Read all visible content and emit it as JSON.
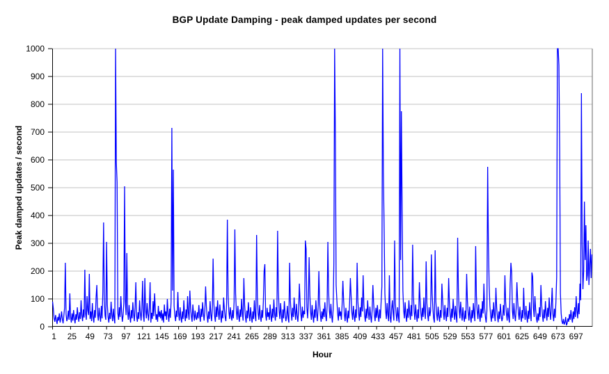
{
  "chart_data": {
    "type": "line",
    "title": "BGP Update Damping - peak damped updates per second",
    "xlabel": "Hour",
    "ylabel": "Peak damped updates / second",
    "ylim": [
      0,
      1000
    ],
    "y_tick_step": 100,
    "y_ticks": [
      0,
      100,
      200,
      300,
      400,
      500,
      600,
      700,
      800,
      900,
      1000
    ],
    "x_tick_labels": [
      1,
      25,
      49,
      73,
      97,
      121,
      145,
      169,
      193,
      217,
      241,
      265,
      289,
      313,
      337,
      361,
      385,
      409,
      433,
      457,
      481,
      505,
      529,
      553,
      577,
      601,
      625,
      649,
      673,
      697
    ],
    "x_start_hour": 1,
    "hours_total": 720,
    "grid": "horizontal-only",
    "legend_position": "none",
    "series_name": "peak damped updates per second",
    "series_color": "#0000FF",
    "gridline_color": "#C0C0C0",
    "plot_border_color": "#808080",
    "axis_color": "#000000",
    "background_color": "#FFFFFF",
    "note": "values above 1000 are clipped at the axis maximum",
    "values": [
      90,
      65,
      30,
      18,
      42,
      25,
      10,
      35,
      22,
      48,
      15,
      30,
      55,
      28,
      12,
      40,
      68,
      230,
      45,
      20,
      32,
      58,
      25,
      120,
      35,
      15,
      48,
      22,
      60,
      30,
      12,
      45,
      25,
      70,
      38,
      18,
      52,
      28,
      95,
      40,
      20,
      62,
      33,
      205,
      48,
      25,
      110,
      58,
      42,
      190,
      28,
      55,
      20,
      85,
      35,
      15,
      60,
      32,
      105,
      150,
      45,
      22,
      68,
      38,
      18,
      75,
      30,
      125,
      375,
      95,
      40,
      25,
      305,
      80,
      35,
      15,
      50,
      28,
      90,
      42,
      20,
      65,
      30,
      12,
      1000,
      590,
      520,
      48,
      25,
      70,
      35,
      110,
      55,
      18,
      40,
      85,
      505,
      95,
      42,
      265,
      55,
      25,
      78,
      35,
      15,
      60,
      30,
      88,
      45,
      20,
      72,
      160,
      38,
      18,
      52,
      28,
      95,
      48,
      22,
      65,
      165,
      40,
      18,
      175,
      58,
      30,
      85,
      45,
      22,
      68,
      160,
      15,
      50,
      28,
      92,
      38,
      120,
      62,
      25,
      45,
      18,
      75,
      35,
      55,
      30,
      60,
      22,
      48,
      15,
      80,
      38,
      55,
      25,
      100,
      45,
      18,
      65,
      32,
      90,
      715,
      130,
      565,
      75,
      40,
      20,
      58,
      35,
      125,
      48,
      22,
      70,
      35,
      15,
      55,
      28,
      95,
      42,
      20,
      62,
      30,
      110,
      50,
      25,
      130,
      68,
      38,
      18,
      80,
      45,
      22,
      58,
      32,
      25,
      52,
      30,
      78,
      40,
      18,
      65,
      35,
      88,
      48,
      22,
      60,
      145,
      75,
      38,
      15,
      55,
      28,
      92,
      45,
      20,
      68,
      245,
      85,
      40,
      18,
      72,
      35,
      95,
      50,
      25,
      80,
      42,
      15,
      58,
      30,
      105,
      65,
      35,
      20,
      85,
      385,
      115,
      55,
      28,
      70,
      40,
      22,
      60,
      30,
      90,
      350,
      120,
      55,
      25,
      75,
      40,
      18,
      62,
      35,
      100,
      48,
      22,
      175,
      80,
      38,
      15,
      58,
      30,
      88,
      45,
      20,
      70,
      35,
      15,
      55,
      28,
      95,
      42,
      20,
      330,
      110,
      48,
      25,
      78,
      38,
      18,
      60,
      32,
      90,
      200,
      225,
      45,
      22,
      68,
      35,
      52,
      25,
      80,
      40,
      18,
      65,
      32,
      98,
      45,
      22,
      70,
      35,
      345,
      130,
      58,
      28,
      85,
      42,
      15,
      62,
      30,
      92,
      48,
      20,
      38,
      75,
      30,
      15,
      230,
      95,
      50,
      22,
      68,
      35,
      105,
      55,
      25,
      82,
      40,
      18,
      60,
      155,
      88,
      45,
      20,
      72,
      32,
      58,
      45,
      310,
      280,
      70,
      30,
      90,
      250,
      115,
      52,
      25,
      78,
      38,
      15,
      62,
      32,
      95,
      48,
      20,
      68,
      200,
      85,
      42,
      18,
      55,
      28,
      65,
      35,
      88,
      42,
      20,
      75,
      305,
      125,
      58,
      30,
      82,
      40,
      15,
      60,
      230,
      1000,
      690,
      150,
      95,
      48,
      22,
      70,
      38,
      55,
      25,
      80,
      165,
      95,
      45,
      20,
      68,
      35,
      15,
      58,
      30,
      88,
      175,
      110,
      50,
      25,
      75,
      38,
      18,
      62,
      32,
      230,
      92,
      48,
      22,
      70,
      35,
      105,
      55,
      185,
      80,
      40,
      18,
      65,
      30,
      95,
      50,
      25,
      72,
      38,
      15,
      58,
      150,
      85,
      42,
      20,
      68,
      32,
      78,
      40,
      18,
      62,
      30,
      90,
      145,
      1000,
      555,
      350,
      120,
      58,
      28,
      85,
      42,
      20,
      185,
      35,
      15,
      65,
      95,
      48,
      22,
      310,
      85,
      45,
      20,
      70,
      35,
      15,
      1000,
      240,
      775,
      420,
      130,
      60,
      30,
      88,
      42,
      18,
      65,
      32,
      95,
      50,
      25,
      78,
      38,
      295,
      115,
      55,
      25,
      80,
      40,
      18,
      62,
      30,
      160,
      92,
      48,
      22,
      68,
      35,
      105,
      52,
      28,
      235,
      85,
      42,
      20,
      70,
      38,
      58,
      260,
      120,
      65,
      30,
      15,
      275,
      90,
      45,
      22,
      72,
      38,
      18,
      60,
      32,
      155,
      95,
      50,
      25,
      78,
      40,
      20,
      68,
      35,
      175,
      88,
      42,
      18,
      65,
      32,
      100,
      55,
      25,
      75,
      38,
      15,
      320,
      135,
      62,
      30,
      90,
      48,
      22,
      70,
      35,
      18,
      58,
      28,
      190,
      95,
      50,
      22,
      72,
      35,
      15,
      60,
      30,
      85,
      45,
      20,
      290,
      110,
      58,
      28,
      80,
      40,
      18,
      65,
      32,
      92,
      48,
      155,
      68,
      35,
      15,
      58,
      575,
      300,
      150,
      75,
      40,
      18,
      62,
      30,
      88,
      45,
      20,
      140,
      70,
      38,
      16,
      55,
      28,
      82,
      42,
      20,
      32,
      78,
      40,
      185,
      90,
      48,
      22,
      68,
      35,
      15,
      155,
      230,
      195,
      58,
      28,
      85,
      42,
      20,
      65,
      160,
      95,
      50,
      25,
      72,
      38,
      18,
      60,
      30,
      140,
      52,
      25,
      75,
      40,
      15,
      58,
      28,
      88,
      45,
      20,
      195,
      180,
      68,
      35,
      110,
      62,
      30,
      15,
      48,
      22,
      70,
      35,
      150,
      80,
      40,
      18,
      62,
      30,
      92,
      48,
      22,
      68,
      35,
      105,
      55,
      25,
      78,
      140,
      45,
      20,
      65,
      32,
      90,
      180,
      1000,
      1000,
      940,
      640,
      120,
      48,
      20,
      10,
      28,
      8,
      15,
      35,
      5,
      12,
      30,
      18,
      45,
      25,
      60,
      32,
      15,
      55,
      28,
      70,
      35,
      110,
      58,
      30,
      85,
      45,
      155,
      95,
      840,
      300,
      135,
      200,
      450,
      240,
      365,
      165,
      185,
      310,
      150,
      220,
      280,
      175,
      260
    ]
  }
}
